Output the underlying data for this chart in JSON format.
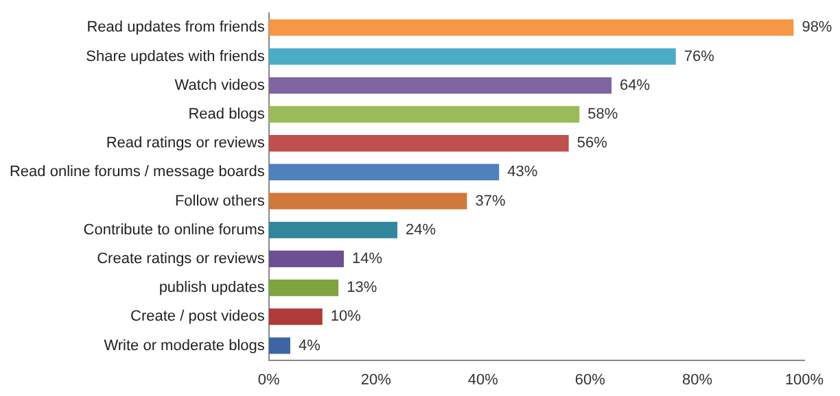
{
  "chart_data": {
    "type": "bar",
    "orientation": "horizontal",
    "categories": [
      "Read updates from friends",
      "Share updates with friends",
      "Watch videos",
      "Read blogs",
      "Read ratings or reviews",
      "Read online forums / message boards",
      "Follow others",
      "Contribute to online forums",
      "Create ratings or reviews",
      "publish updates",
      "Create / post videos",
      "Write or moderate blogs"
    ],
    "values": [
      98,
      76,
      64,
      58,
      56,
      43,
      37,
      24,
      14,
      13,
      10,
      4
    ],
    "value_labels": [
      "98%",
      "76%",
      "64%",
      "58%",
      "56%",
      "43%",
      "37%",
      "24%",
      "14%",
      "13%",
      "10%",
      "4%"
    ],
    "colors": [
      "#f79646",
      "#4bacc6",
      "#8064a2",
      "#9bbb59",
      "#c0504d",
      "#4f81bd",
      "#d0793a",
      "#31859c",
      "#6b5094",
      "#7fa33f",
      "#b03a38",
      "#3d65a5"
    ],
    "xlim": [
      0,
      100
    ],
    "xticks": [
      {
        "value": 0,
        "label": "0%"
      },
      {
        "value": 20,
        "label": "20%"
      },
      {
        "value": 40,
        "label": "40%"
      },
      {
        "value": 60,
        "label": "60%"
      },
      {
        "value": 80,
        "label": "80%"
      },
      {
        "value": 100,
        "label": "100%"
      }
    ],
    "grid": false,
    "legend": false
  }
}
